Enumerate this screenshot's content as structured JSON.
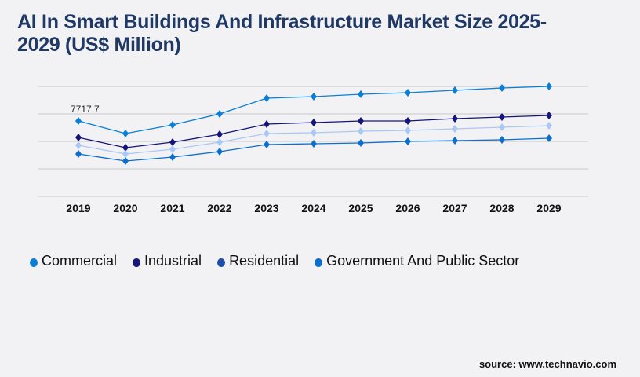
{
  "title": "AI In Smart Buildings And Infrastructure Market Size 2025-2029 (US$ Million)",
  "source": "source: www.technavio.com",
  "chart_data": {
    "type": "line",
    "title": "AI In Smart Buildings And Infrastructure Market Size 2025-2029 (US$ Million)",
    "xlabel": "",
    "ylabel": "",
    "categories": [
      "2019",
      "2020",
      "2021",
      "2022",
      "2023",
      "2024",
      "2025",
      "2026",
      "2027",
      "2028",
      "2029"
    ],
    "ylim": [
      0,
      11255
    ],
    "grid": true,
    "legend_position": "bottom",
    "annotations": [
      {
        "series": "Commercial",
        "category": "2019",
        "label": "7717.7"
      }
    ],
    "series": [
      {
        "name": "Commercial",
        "color": "#0b7fd6",
        "line_color": "#0b7fd6",
        "values": [
          7717.7,
          6431,
          7315,
          8441,
          10049,
          10210,
          10451,
          10611,
          10853,
          11094,
          11255
        ]
      },
      {
        "name": "Industrial",
        "color": "#15157a",
        "line_color": "#15157a",
        "values": [
          6029,
          4984,
          5547,
          6351,
          7396,
          7557,
          7717,
          7717,
          7959,
          8119,
          8280
        ]
      },
      {
        "name": "Residential",
        "color": "#1f4fa8",
        "line_color": "#a9c8f5",
        "values": [
          5225,
          4341,
          4823,
          5547,
          6431,
          6512,
          6672,
          6753,
          6914,
          7074,
          7235
        ]
      },
      {
        "name": "Government And Public Sector",
        "color": "#0b6fd0",
        "line_color": "#0b6fd0",
        "values": [
          4341,
          3618,
          4020,
          4582,
          5306,
          5386,
          5467,
          5627,
          5708,
          5788,
          5949
        ]
      }
    ]
  }
}
